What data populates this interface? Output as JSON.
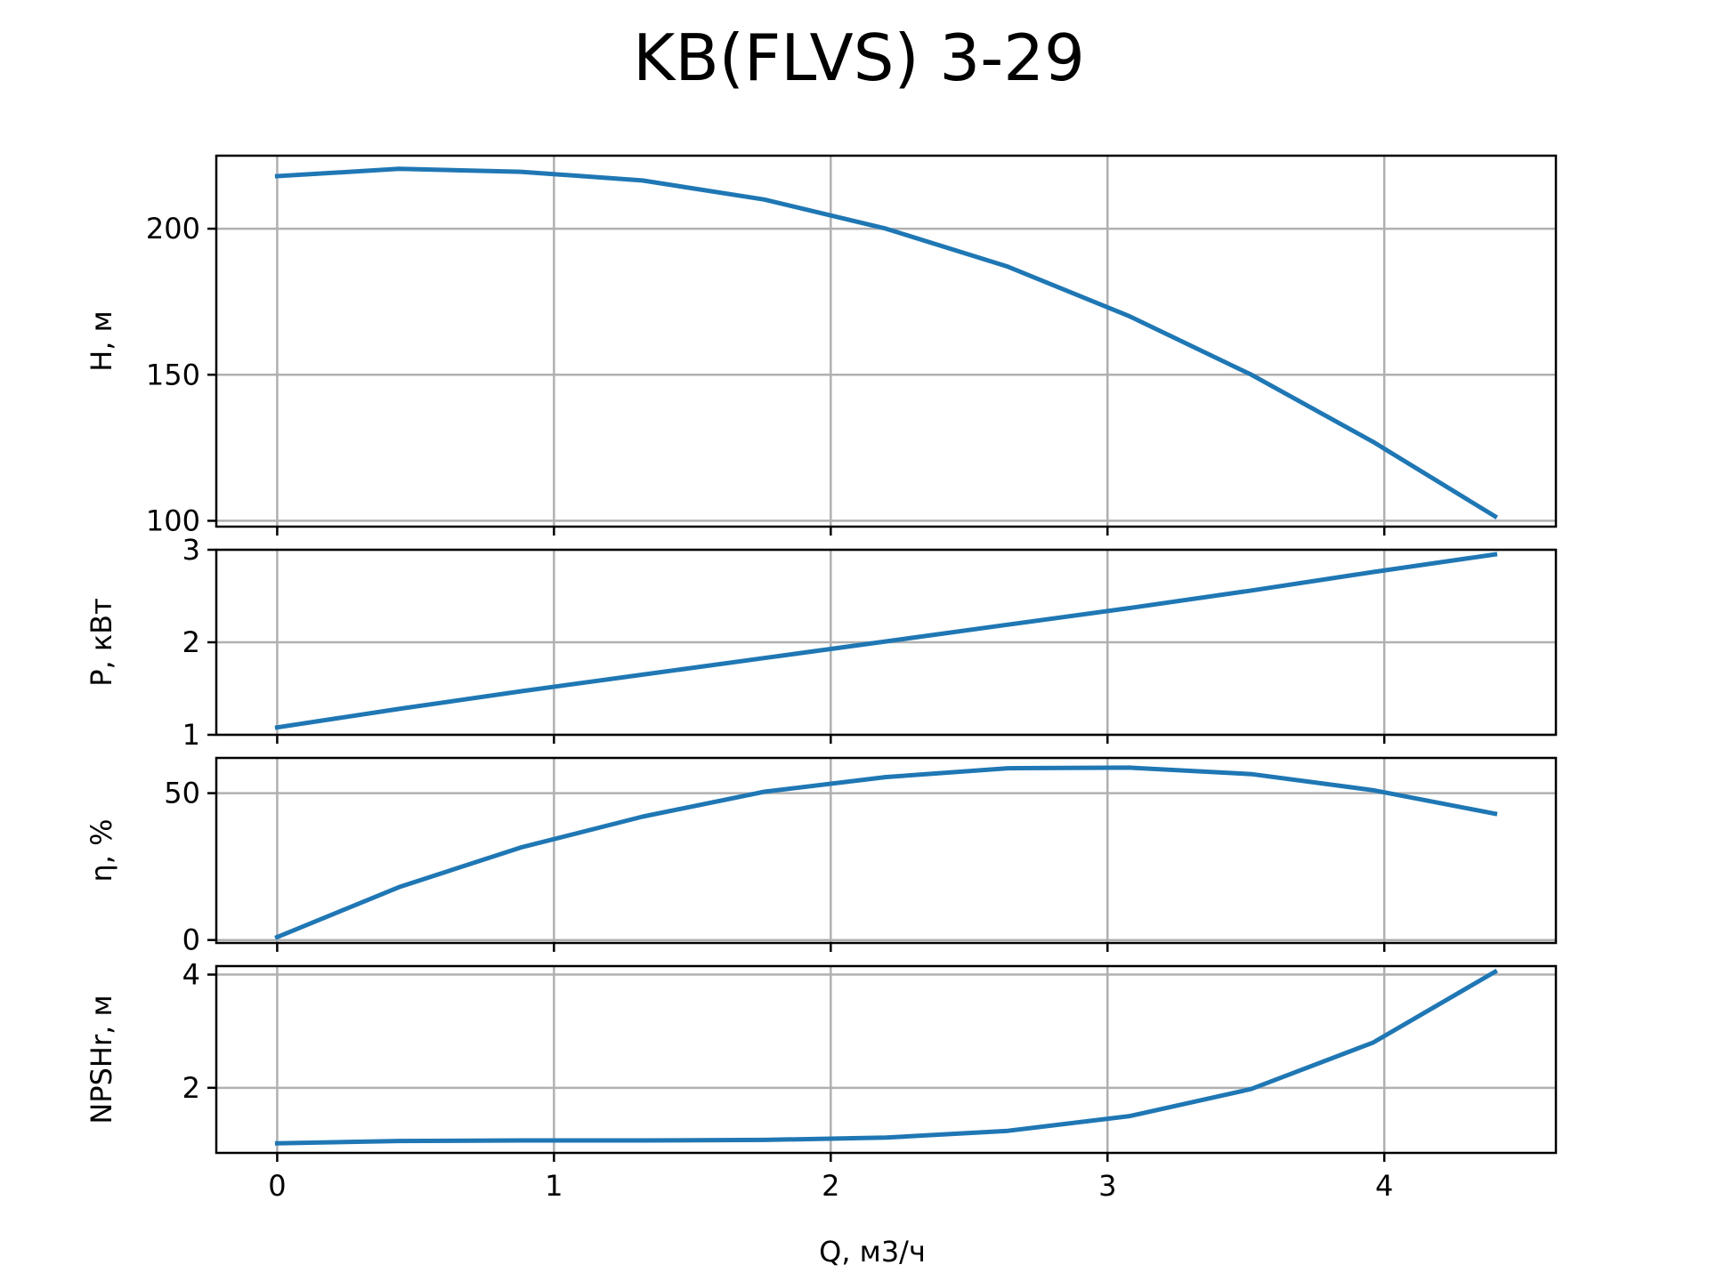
{
  "colors": {
    "series": "#1f77b4"
  },
  "chart_data": {
    "type": "line",
    "title": "KB(FLVS) 3-29",
    "xlabel": "Q, м3/ч",
    "xlim": [
      -0.22,
      4.62
    ],
    "xticks": [
      0,
      1,
      2,
      3,
      4
    ],
    "x": [
      0,
      0.44,
      0.88,
      1.32,
      1.76,
      2.2,
      2.64,
      3.08,
      3.52,
      3.96,
      4.4
    ],
    "grid": true,
    "panels": [
      {
        "key": "H",
        "ylabel": "H, м",
        "ylim": [
          98,
          225
        ],
        "yticks": [
          100,
          150,
          200
        ],
        "y": [
          218,
          220.5,
          219.5,
          216.5,
          210,
          200,
          187,
          170,
          150,
          127,
          101.5
        ]
      },
      {
        "key": "P",
        "ylabel": "P, кВт",
        "ylim": [
          1,
          3
        ],
        "yticks": [
          1,
          2,
          3
        ],
        "y": [
          1.08,
          1.28,
          1.47,
          1.65,
          1.83,
          2.01,
          2.19,
          2.37,
          2.56,
          2.76,
          2.95
        ]
      },
      {
        "key": "eta",
        "ylabel": "η, %",
        "ylim": [
          -1,
          62
        ],
        "yticks": [
          0,
          50
        ],
        "y": [
          1,
          18,
          31.5,
          42,
          50.5,
          55.5,
          58.5,
          58.7,
          56.5,
          51,
          43
        ]
      },
      {
        "key": "NPSHr",
        "ylabel": "NPSHr, м",
        "ylim": [
          0.85,
          4.15
        ],
        "yticks": [
          2,
          4
        ],
        "y": [
          1.02,
          1.06,
          1.07,
          1.07,
          1.08,
          1.12,
          1.24,
          1.5,
          1.98,
          2.8,
          4.05
        ]
      }
    ]
  }
}
